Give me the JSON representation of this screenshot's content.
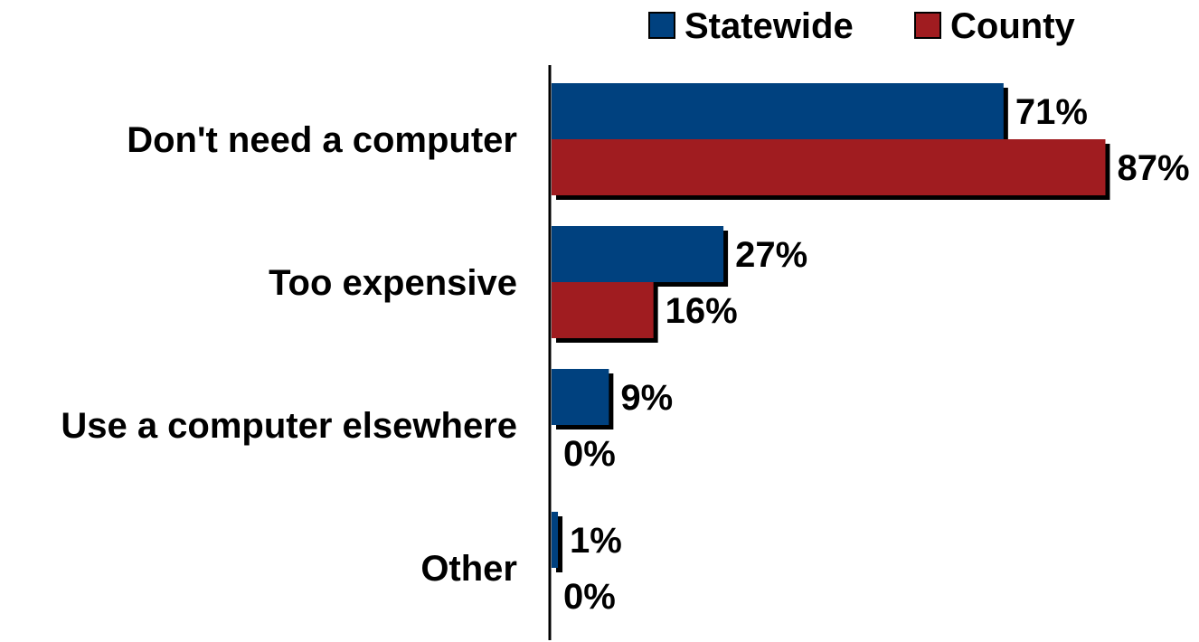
{
  "chart_data": {
    "type": "bar",
    "orientation": "horizontal",
    "categories": [
      "Don't need a computer",
      "Too expensive",
      "Use a computer elsewhere",
      "Other"
    ],
    "series": [
      {
        "name": "Statewide",
        "color": "#00417F",
        "values": [
          71,
          27,
          9,
          1
        ],
        "labels": [
          "71%",
          "27%",
          "9%",
          "1%"
        ]
      },
      {
        "name": "County",
        "color": "#A01C20",
        "values": [
          87,
          16,
          0,
          0
        ],
        "labels": [
          "87%",
          "16%",
          "0%",
          "0%"
        ]
      }
    ],
    "xlim": [
      0,
      100
    ],
    "grid": false,
    "legend": "top-right",
    "title": "",
    "xlabel": "",
    "ylabel": ""
  }
}
